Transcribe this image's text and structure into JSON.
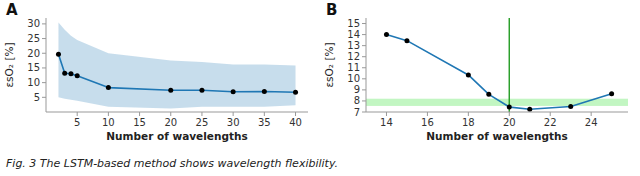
{
  "chart_data": [
    {
      "type": "line",
      "title": "A",
      "x_label": "Number of wavelengths",
      "y_label": "εsO₂ [%]",
      "x": [
        2,
        3,
        4,
        5,
        10,
        20,
        25,
        30,
        35,
        40
      ],
      "series": [
        {
          "color": "#1f77b4",
          "marker": "circle",
          "values": [
            19.7,
            13.2,
            13.0,
            12.3,
            8.3,
            7.4,
            7.4,
            6.9,
            7.0,
            6.7
          ],
          "lower": [
            5.0,
            4.5,
            4.2,
            3.8,
            1.8,
            1.2,
            1.8,
            1.8,
            1.8,
            2.3
          ],
          "upper": [
            30.5,
            28.0,
            26.0,
            24.5,
            20.0,
            17.5,
            17.0,
            16.2,
            16.2,
            15.8
          ]
        }
      ],
      "xlim": [
        0,
        42
      ],
      "ylim": [
        0,
        32
      ],
      "xticks": [
        5,
        10,
        15,
        20,
        25,
        30,
        35,
        40
      ],
      "yticks": [
        5,
        10,
        15,
        20,
        25,
        30
      ],
      "grid": false
    },
    {
      "type": "line",
      "title": "B",
      "x_label": "Number of wavelengths",
      "y_label": "εsO₂ [%]",
      "x": [
        14,
        15,
        18,
        19,
        20,
        21,
        23,
        25
      ],
      "series": [
        {
          "color": "#1f77b4",
          "marker": "circle",
          "values": [
            14.0,
            13.45,
            10.35,
            8.6,
            7.45,
            7.25,
            7.5,
            8.65
          ]
        }
      ],
      "annotations": [
        {
          "type": "hband",
          "ymin": 7.55,
          "ymax": 8.2,
          "color": "#90ee90"
        },
        {
          "type": "vline",
          "x": 20,
          "color": "#2ca02c"
        }
      ],
      "xlim": [
        13.0,
        25.8
      ],
      "ylim": [
        7.0,
        15.5
      ],
      "xticks": [
        14,
        16,
        18,
        20,
        22,
        24
      ],
      "yticks": [
        7,
        8,
        9,
        10,
        11,
        12,
        13,
        14,
        15
      ],
      "grid": false
    }
  ],
  "caption": "Fig. 3 The LSTM-based method shows wavelength flexibility."
}
